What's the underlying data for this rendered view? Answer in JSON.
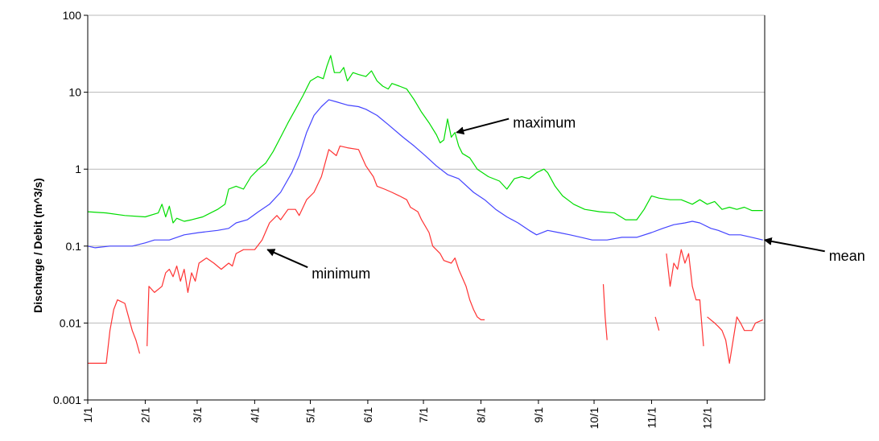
{
  "chart_data": {
    "type": "line",
    "title": "",
    "xlabel": "",
    "ylabel": "Discharge / Debit (m^3/s)",
    "y_scale": "log",
    "ylim": [
      0.001,
      100
    ],
    "xlim": [
      0,
      365
    ],
    "y_ticks": [
      0.001,
      0.01,
      0.1,
      1,
      10,
      100
    ],
    "y_tick_labels": [
      "0.001",
      "0.01",
      "0.1",
      "1",
      "10",
      "100"
    ],
    "x_tick_days": [
      0,
      31,
      59,
      90,
      120,
      151,
      181,
      212,
      243,
      273,
      304,
      334
    ],
    "x_tick_labels": [
      "1/1",
      "2/1",
      "3/1",
      "4/1",
      "5/1",
      "6/1",
      "7/1",
      "8/1",
      "9/1",
      "10/1",
      "11/1",
      "12/1"
    ],
    "grid": true,
    "legend": "none",
    "series": [
      {
        "key": "maximum",
        "color": "#00dd00",
        "segments": [
          [
            [
              0,
              0.28
            ],
            [
              10,
              0.27
            ],
            [
              20,
              0.25
            ],
            [
              31,
              0.24
            ],
            [
              38,
              0.27
            ],
            [
              40,
              0.35
            ],
            [
              42,
              0.24
            ],
            [
              44,
              0.33
            ],
            [
              46,
              0.2
            ],
            [
              48,
              0.23
            ],
            [
              52,
              0.21
            ],
            [
              56,
              0.22
            ],
            [
              62,
              0.24
            ],
            [
              70,
              0.3
            ],
            [
              74,
              0.35
            ],
            [
              76,
              0.55
            ],
            [
              80,
              0.6
            ],
            [
              84,
              0.55
            ],
            [
              88,
              0.8
            ],
            [
              92,
              1.0
            ],
            [
              96,
              1.2
            ],
            [
              100,
              1.7
            ],
            [
              104,
              2.6
            ],
            [
              108,
              4.0
            ],
            [
              112,
              6.0
            ],
            [
              116,
              9.0
            ],
            [
              120,
              14
            ],
            [
              124,
              16
            ],
            [
              127,
              15
            ],
            [
              129,
              22
            ],
            [
              131,
              30
            ],
            [
              133,
              18
            ],
            [
              136,
              18
            ],
            [
              138,
              21
            ],
            [
              140,
              14
            ],
            [
              143,
              18
            ],
            [
              146,
              17
            ],
            [
              150,
              16
            ],
            [
              153,
              19
            ],
            [
              156,
              14
            ],
            [
              159,
              12
            ],
            [
              162,
              11
            ],
            [
              164,
              13
            ],
            [
              168,
              12
            ],
            [
              172,
              11
            ],
            [
              176,
              8.0
            ],
            [
              180,
              5.5
            ],
            [
              184,
              4.0
            ],
            [
              188,
              2.8
            ],
            [
              190,
              2.2
            ],
            [
              192,
              2.4
            ],
            [
              194,
              4.5
            ],
            [
              196,
              2.6
            ],
            [
              198,
              3.0
            ],
            [
              200,
              2.0
            ],
            [
              202,
              1.6
            ],
            [
              206,
              1.4
            ],
            [
              210,
              1.0
            ],
            [
              216,
              0.8
            ],
            [
              222,
              0.7
            ],
            [
              226,
              0.55
            ],
            [
              230,
              0.75
            ],
            [
              234,
              0.8
            ],
            [
              238,
              0.75
            ],
            [
              242,
              0.9
            ],
            [
              246,
              1.0
            ],
            [
              248,
              0.9
            ],
            [
              252,
              0.6
            ],
            [
              256,
              0.45
            ],
            [
              262,
              0.35
            ],
            [
              268,
              0.3
            ],
            [
              276,
              0.28
            ],
            [
              284,
              0.27
            ],
            [
              290,
              0.22
            ],
            [
              296,
              0.22
            ],
            [
              300,
              0.3
            ],
            [
              304,
              0.45
            ],
            [
              308,
              0.42
            ],
            [
              314,
              0.4
            ],
            [
              320,
              0.4
            ],
            [
              326,
              0.35
            ],
            [
              330,
              0.4
            ],
            [
              334,
              0.35
            ],
            [
              338,
              0.38
            ],
            [
              342,
              0.3
            ],
            [
              346,
              0.32
            ],
            [
              350,
              0.3
            ],
            [
              354,
              0.32
            ],
            [
              358,
              0.29
            ],
            [
              364,
              0.29
            ]
          ]
        ]
      },
      {
        "key": "mean",
        "color": "#4444ff",
        "segments": [
          [
            [
              0,
              0.1
            ],
            [
              4,
              0.095
            ],
            [
              12,
              0.1
            ],
            [
              24,
              0.1
            ],
            [
              31,
              0.11
            ],
            [
              36,
              0.12
            ],
            [
              44,
              0.12
            ],
            [
              52,
              0.14
            ],
            [
              60,
              0.15
            ],
            [
              70,
              0.16
            ],
            [
              76,
              0.17
            ],
            [
              80,
              0.2
            ],
            [
              86,
              0.22
            ],
            [
              92,
              0.28
            ],
            [
              98,
              0.35
            ],
            [
              104,
              0.5
            ],
            [
              110,
              0.9
            ],
            [
              114,
              1.5
            ],
            [
              118,
              3.0
            ],
            [
              122,
              5.0
            ],
            [
              126,
              6.5
            ],
            [
              130,
              8.0
            ],
            [
              134,
              7.5
            ],
            [
              140,
              6.8
            ],
            [
              146,
              6.5
            ],
            [
              150,
              6.0
            ],
            [
              156,
              5.0
            ],
            [
              162,
              3.8
            ],
            [
              170,
              2.6
            ],
            [
              176,
              2.0
            ],
            [
              182,
              1.5
            ],
            [
              188,
              1.1
            ],
            [
              194,
              0.85
            ],
            [
              200,
              0.75
            ],
            [
              208,
              0.5
            ],
            [
              214,
              0.4
            ],
            [
              220,
              0.3
            ],
            [
              226,
              0.24
            ],
            [
              232,
              0.2
            ],
            [
              238,
              0.16
            ],
            [
              242,
              0.14
            ],
            [
              248,
              0.16
            ],
            [
              254,
              0.15
            ],
            [
              260,
              0.14
            ],
            [
              266,
              0.13
            ],
            [
              272,
              0.12
            ],
            [
              280,
              0.12
            ],
            [
              288,
              0.13
            ],
            [
              296,
              0.13
            ],
            [
              304,
              0.15
            ],
            [
              310,
              0.17
            ],
            [
              316,
              0.19
            ],
            [
              322,
              0.2
            ],
            [
              326,
              0.21
            ],
            [
              330,
              0.2
            ],
            [
              336,
              0.17
            ],
            [
              340,
              0.16
            ],
            [
              346,
              0.14
            ],
            [
              352,
              0.14
            ],
            [
              358,
              0.13
            ],
            [
              364,
              0.12
            ]
          ]
        ]
      },
      {
        "key": "minimum",
        "color": "#ff3333",
        "segments": [
          [
            [
              0,
              0.003
            ],
            [
              10,
              0.003
            ],
            [
              12,
              0.008
            ],
            [
              14,
              0.015
            ],
            [
              16,
              0.02
            ],
            [
              20,
              0.018
            ],
            [
              22,
              0.012
            ],
            [
              24,
              0.008
            ],
            [
              26,
              0.006
            ],
            [
              28,
              0.004
            ]
          ],
          [
            [
              32,
              0.005
            ],
            [
              33,
              0.03
            ],
            [
              36,
              0.025
            ],
            [
              40,
              0.03
            ],
            [
              42,
              0.045
            ],
            [
              44,
              0.05
            ],
            [
              46,
              0.04
            ],
            [
              48,
              0.055
            ],
            [
              50,
              0.035
            ],
            [
              52,
              0.05
            ],
            [
              54,
              0.025
            ],
            [
              56,
              0.045
            ],
            [
              58,
              0.035
            ],
            [
              60,
              0.06
            ],
            [
              64,
              0.07
            ],
            [
              68,
              0.06
            ],
            [
              72,
              0.05
            ],
            [
              76,
              0.06
            ],
            [
              78,
              0.055
            ],
            [
              80,
              0.08
            ],
            [
              84,
              0.09
            ],
            [
              90,
              0.09
            ],
            [
              94,
              0.12
            ],
            [
              98,
              0.2
            ],
            [
              102,
              0.25
            ],
            [
              104,
              0.22
            ],
            [
              108,
              0.3
            ],
            [
              112,
              0.3
            ],
            [
              114,
              0.25
            ],
            [
              118,
              0.4
            ],
            [
              122,
              0.5
            ],
            [
              126,
              0.8
            ],
            [
              130,
              1.8
            ],
            [
              134,
              1.5
            ],
            [
              136,
              2.0
            ],
            [
              140,
              1.9
            ],
            [
              146,
              1.8
            ],
            [
              150,
              1.1
            ],
            [
              154,
              0.8
            ],
            [
              156,
              0.6
            ],
            [
              160,
              0.55
            ],
            [
              164,
              0.5
            ],
            [
              168,
              0.45
            ],
            [
              172,
              0.4
            ],
            [
              174,
              0.32
            ],
            [
              178,
              0.28
            ],
            [
              180,
              0.22
            ],
            [
              184,
              0.15
            ],
            [
              186,
              0.1
            ],
            [
              190,
              0.08
            ],
            [
              192,
              0.065
            ],
            [
              196,
              0.06
            ],
            [
              198,
              0.07
            ],
            [
              200,
              0.05
            ],
            [
              204,
              0.03
            ],
            [
              206,
              0.02
            ],
            [
              208,
              0.015
            ],
            [
              210,
              0.012
            ],
            [
              212,
              0.011
            ],
            [
              214,
              0.011
            ]
          ],
          [
            [
              278,
              0.032
            ],
            [
              279,
              0.012
            ],
            [
              280,
              0.006
            ]
          ],
          [
            [
              306,
              0.012
            ],
            [
              308,
              0.008
            ]
          ],
          [
            [
              312,
              0.08
            ],
            [
              314,
              0.03
            ],
            [
              316,
              0.06
            ],
            [
              318,
              0.05
            ],
            [
              320,
              0.09
            ],
            [
              322,
              0.06
            ],
            [
              324,
              0.08
            ],
            [
              326,
              0.03
            ],
            [
              328,
              0.02
            ],
            [
              330,
              0.02
            ],
            [
              332,
              0.005
            ]
          ],
          [
            [
              334,
              0.012
            ],
            [
              338,
              0.01
            ],
            [
              340,
              0.009
            ],
            [
              342,
              0.008
            ],
            [
              344,
              0.006
            ],
            [
              346,
              0.003
            ],
            [
              348,
              0.006
            ],
            [
              350,
              0.012
            ],
            [
              352,
              0.01
            ],
            [
              354,
              0.008
            ],
            [
              358,
              0.008
            ],
            [
              360,
              0.01
            ],
            [
              364,
              0.011
            ]
          ]
        ]
      }
    ],
    "annotations": [
      {
        "text": "maximum",
        "target_series": "maximum",
        "target": [
          198,
          3.0
        ]
      },
      {
        "text": "minimum",
        "target_series": "minimum",
        "target": [
          96,
          0.09
        ]
      },
      {
        "text": "mean",
        "target_series": "mean",
        "target": [
          364,
          0.12
        ]
      }
    ]
  }
}
